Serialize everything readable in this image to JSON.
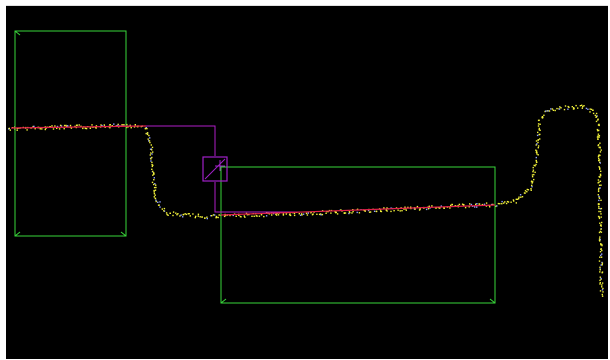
{
  "viewer": {
    "name": "scan-profile-view",
    "background": "#000000"
  },
  "colors": {
    "roi_box": "#39d63a",
    "fit_line": "#e0204a",
    "guide_line": "#b01ec8",
    "marker_box": "#a020c8",
    "point_cloud": "#f2f23a",
    "point_noise": "#8fa0ff"
  },
  "regions": [
    {
      "id": "left-roi",
      "label": ""
    },
    {
      "id": "right-roi",
      "label": ""
    }
  ],
  "icons": {
    "marker": "crosshair-icon"
  }
}
